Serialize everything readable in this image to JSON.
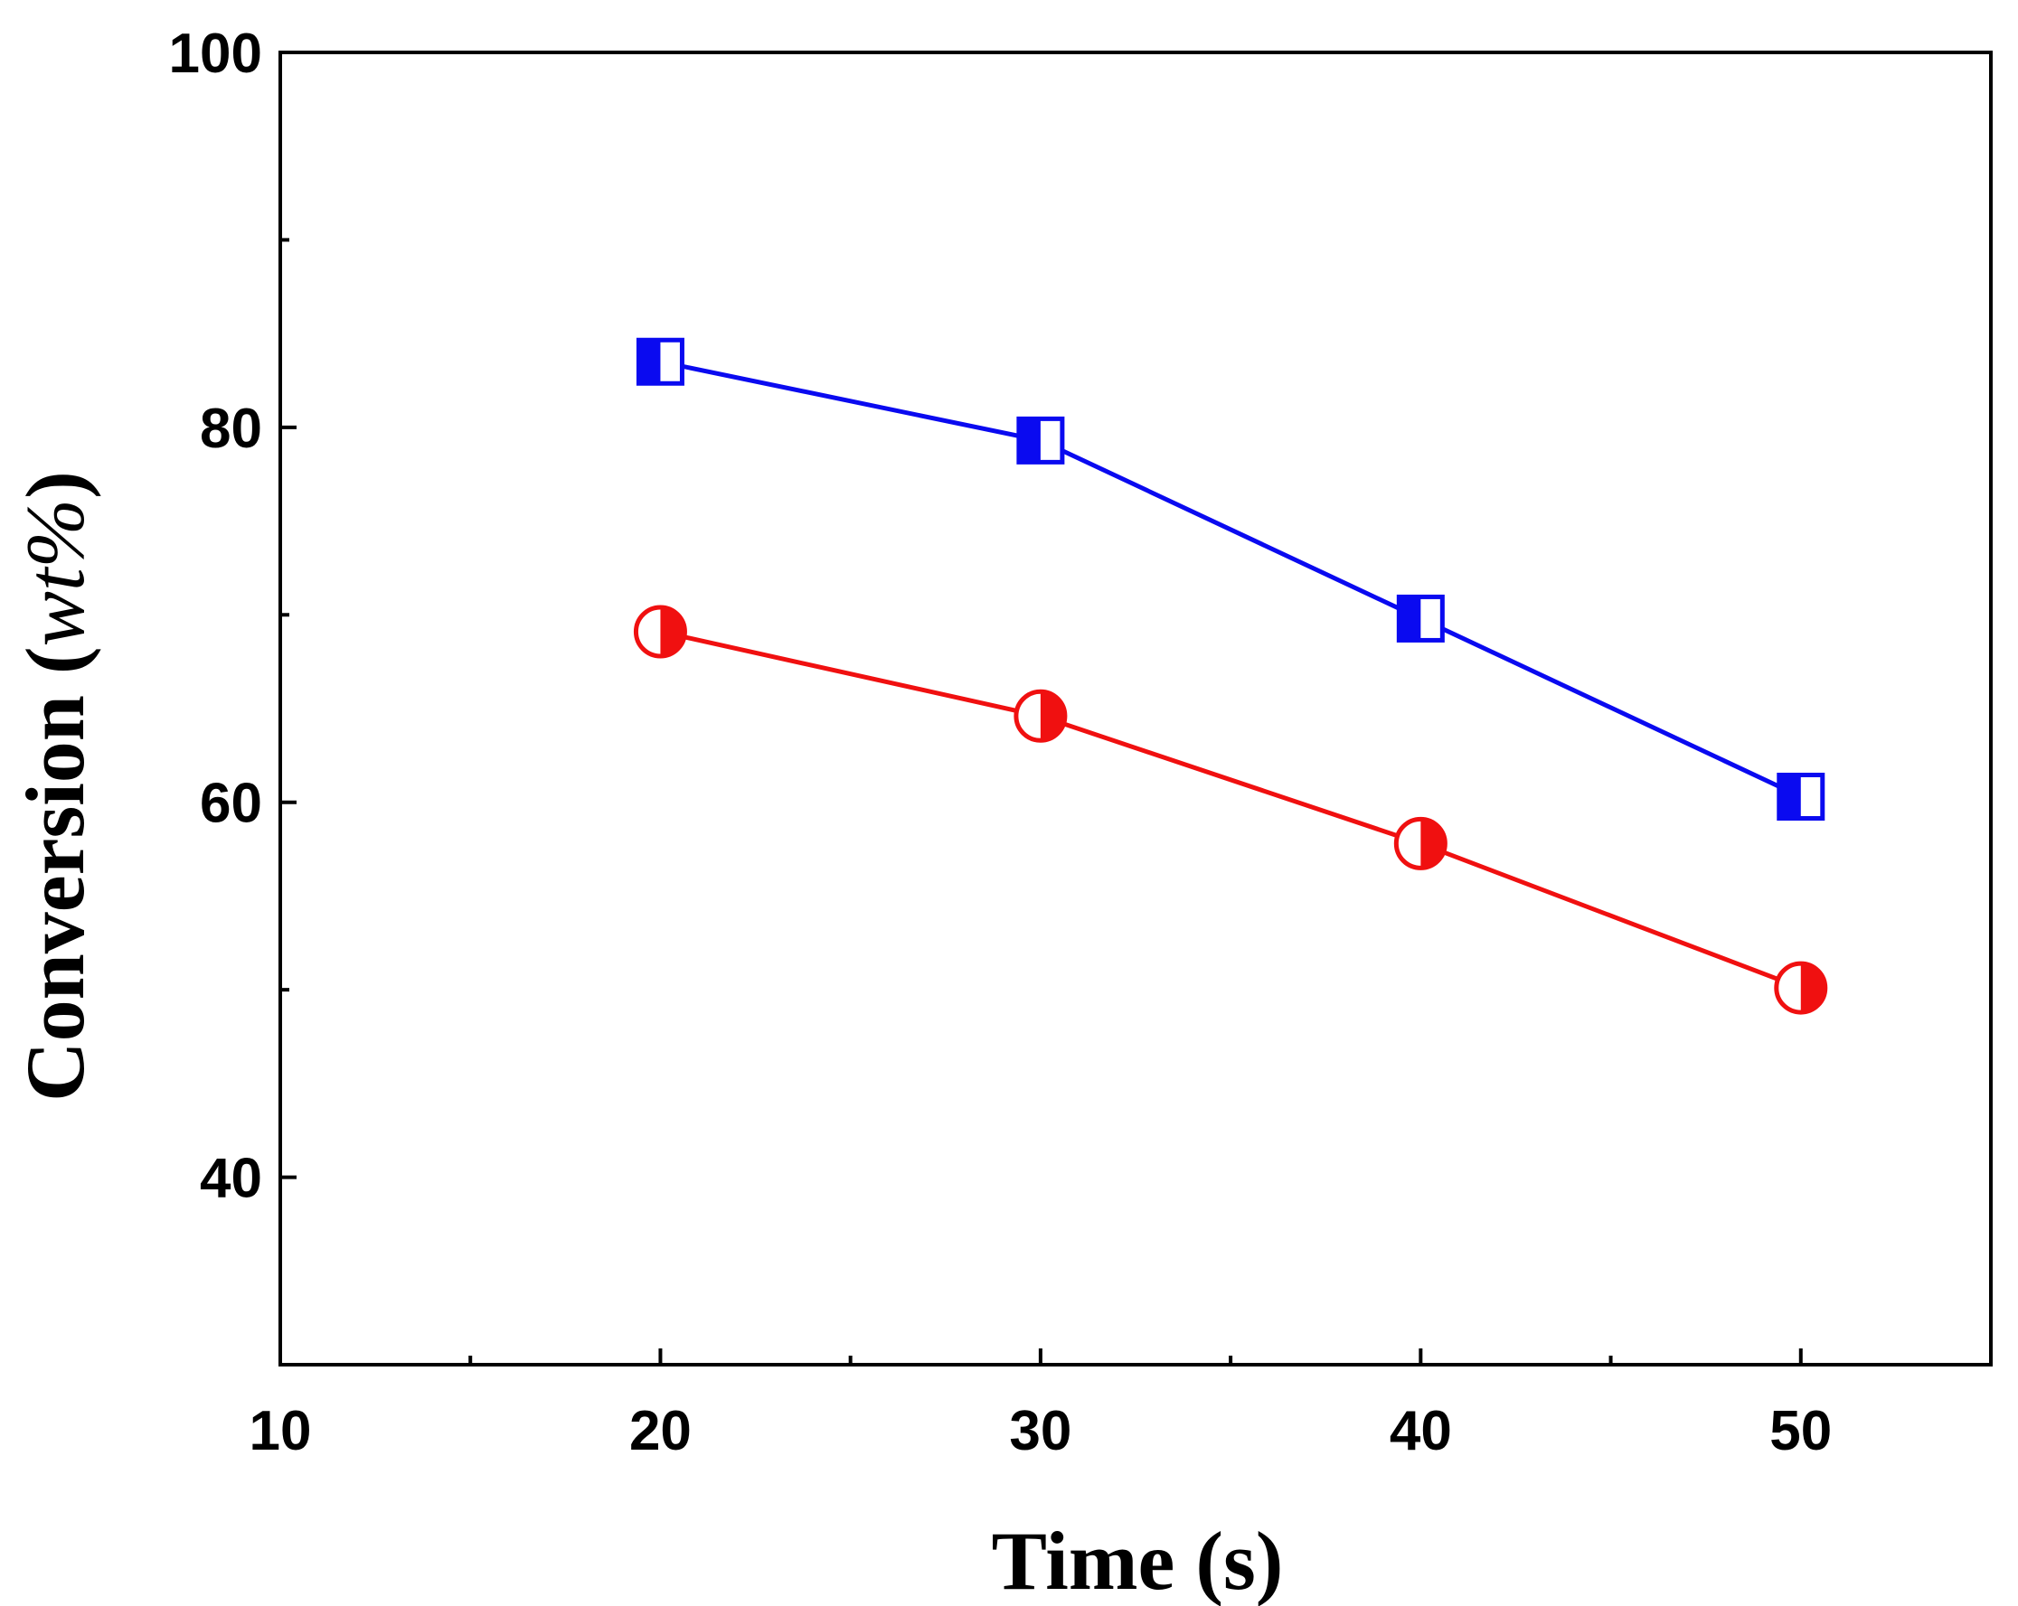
{
  "chart_data": {
    "type": "line",
    "xlabel": "Time (s)",
    "ylabel": {
      "main": "Conversion (",
      "unit": "wt%",
      "close": ")"
    },
    "xlim": [
      10,
      55
    ],
    "ylim": [
      30,
      100
    ],
    "x_ticks": [
      10,
      20,
      30,
      40,
      50
    ],
    "y_ticks": [
      40,
      60,
      80,
      100
    ],
    "x_minor_ticks": [
      15,
      25,
      35,
      45
    ],
    "y_minor_ticks": [
      50,
      70,
      90
    ],
    "grid": false,
    "series": [
      {
        "marker": "half-filled-square",
        "color": "#0a0af0",
        "x": [
          20,
          30,
          40,
          50
        ],
        "y": [
          83.5,
          79.3,
          69.8,
          60.3
        ]
      },
      {
        "marker": "half-filled-circle",
        "color": "#f01010",
        "x": [
          20,
          30,
          40,
          50
        ],
        "y": [
          69.1,
          64.6,
          57.8,
          50.1
        ]
      }
    ]
  }
}
